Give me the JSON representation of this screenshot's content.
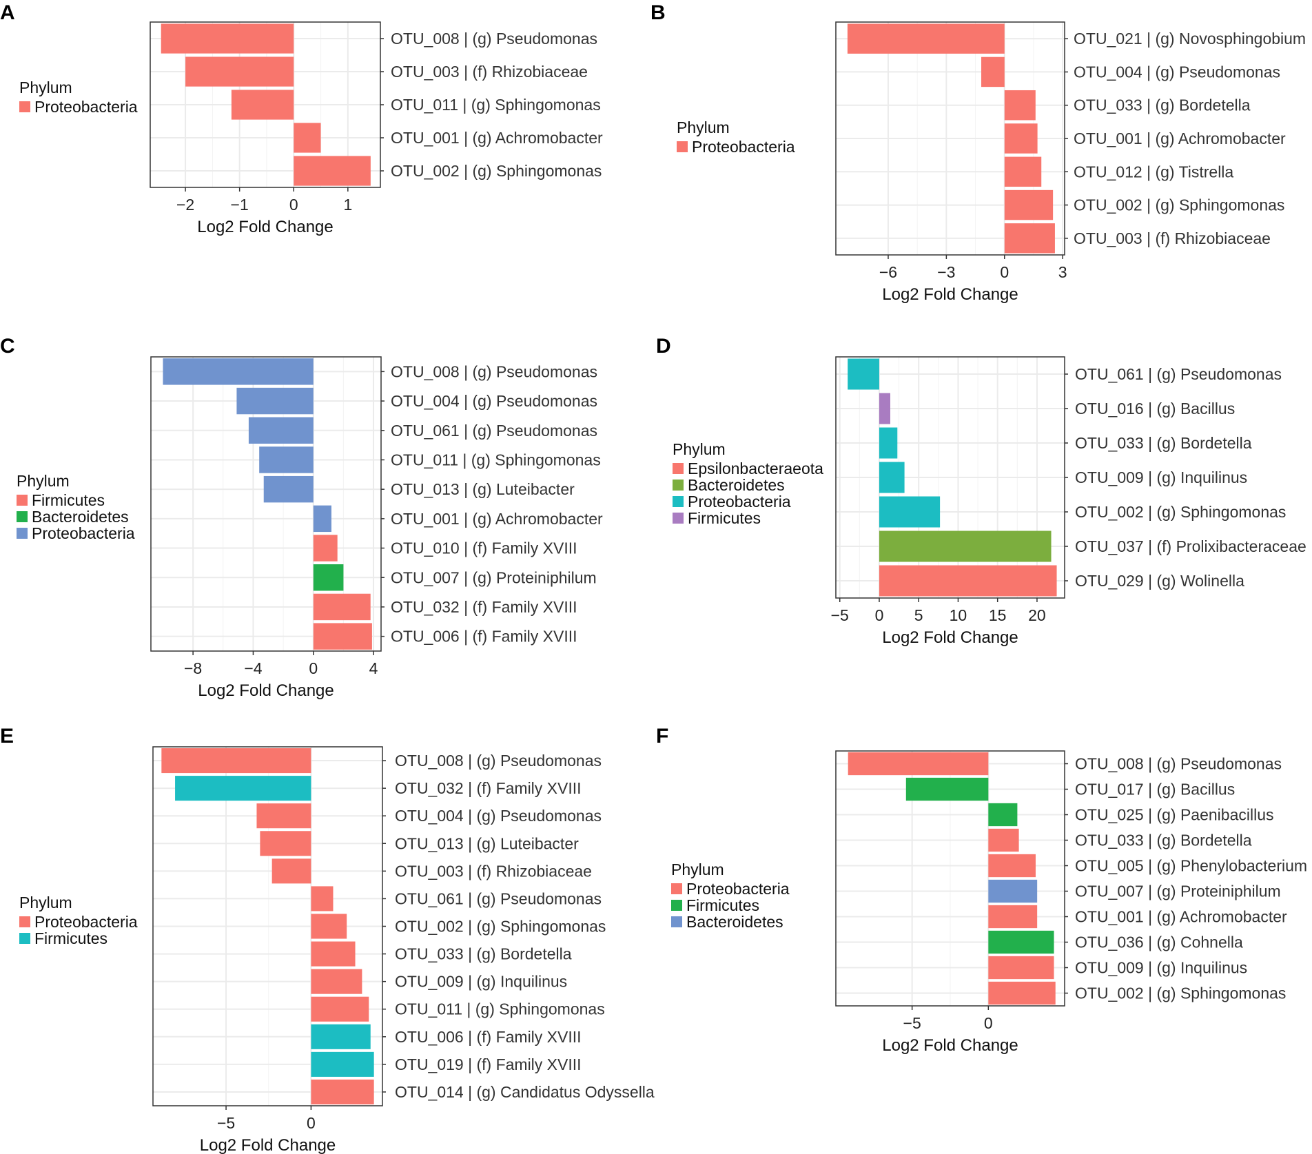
{
  "colors": {
    "red": "#F8766D",
    "blue": "#7093CE",
    "green": "#22B04C",
    "teal": "#1CBDC2",
    "olive": "#7CAE3E",
    "purple": "#A97CC1"
  },
  "chart_data": [
    {
      "panel": "A",
      "type": "bar",
      "orientation": "horizontal",
      "xlabel": "Log2 Fold Change",
      "xlim": [
        -2.65,
        1.6
      ],
      "xticks": [
        -2,
        -1,
        0,
        1
      ],
      "xtick_labels": [
        "−2",
        "−1",
        "0",
        "1"
      ],
      "legend": {
        "title": "Phylum",
        "entries": [
          {
            "name": "Proteobacteria",
            "color": "red"
          }
        ]
      },
      "categories": [
        "OTU_008 | (g) Pseudomonas",
        "OTU_003 | (f) Rhizobiaceae",
        "OTU_011 | (g) Sphingomonas",
        "OTU_001 | (g) Achromobacter",
        "OTU_002 | (g) Sphingomonas"
      ],
      "values": [
        -2.45,
        -2.0,
        -1.15,
        0.5,
        1.42
      ],
      "bar_colors": [
        "red",
        "red",
        "red",
        "red",
        "red"
      ]
    },
    {
      "panel": "B",
      "type": "bar",
      "orientation": "horizontal",
      "xlabel": "Log2 Fold Change",
      "xlim": [
        -8.7,
        3.1
      ],
      "xticks": [
        -6,
        -3,
        0,
        3
      ],
      "xtick_labels": [
        "−6",
        "−3",
        "0",
        "3"
      ],
      "legend": {
        "title": "Phylum",
        "entries": [
          {
            "name": "Proteobacteria",
            "color": "red"
          }
        ]
      },
      "categories": [
        "OTU_021 | (g) Novosphingobium",
        "OTU_004 | (g) Pseudomonas",
        "OTU_033 | (g) Bordetella",
        "OTU_001 | (g) Achromobacter",
        "OTU_012 | (g) Tistrella",
        "OTU_002 | (g) Sphingomonas",
        "OTU_003 | (f) Rhizobiaceae"
      ],
      "values": [
        -8.1,
        -1.2,
        1.6,
        1.7,
        1.9,
        2.5,
        2.6
      ],
      "bar_colors": [
        "red",
        "red",
        "red",
        "red",
        "red",
        "red",
        "red"
      ]
    },
    {
      "panel": "C",
      "type": "bar",
      "orientation": "horizontal",
      "xlabel": "Log2 Fold Change",
      "xlim": [
        -10.8,
        4.5
      ],
      "xticks": [
        -8,
        -4,
        0,
        4
      ],
      "xtick_labels": [
        "−8",
        "−4",
        "0",
        "4"
      ],
      "legend": {
        "title": "Phylum",
        "entries": [
          {
            "name": "Firmicutes",
            "color": "red"
          },
          {
            "name": "Bacteroidetes",
            "color": "green"
          },
          {
            "name": "Proteobacteria",
            "color": "blue"
          }
        ]
      },
      "categories": [
        "OTU_008 | (g) Pseudomonas",
        "OTU_004 | (g) Pseudomonas",
        "OTU_061 | (g) Pseudomonas",
        "OTU_011 | (g) Sphingomonas",
        "OTU_013 | (g) Luteibacter",
        "OTU_001 | (g) Achromobacter",
        "OTU_010 | (f) Family XVIII",
        "OTU_007 | (g) Proteiniphilum",
        "OTU_032 | (f) Family XVIII",
        "OTU_006 | (f) Family XVIII"
      ],
      "values": [
        -10.0,
        -5.1,
        -4.3,
        -3.6,
        -3.3,
        1.2,
        1.6,
        2.0,
        3.8,
        3.9
      ],
      "bar_colors": [
        "blue",
        "blue",
        "blue",
        "blue",
        "blue",
        "blue",
        "red",
        "green",
        "red",
        "red"
      ]
    },
    {
      "panel": "D",
      "type": "bar",
      "orientation": "horizontal",
      "xlabel": "Log2 Fold Change",
      "xlim": [
        -5.5,
        23.5
      ],
      "xticks": [
        -5,
        0,
        5,
        10,
        15,
        20
      ],
      "xtick_labels": [
        "−5",
        "0",
        "5",
        "10",
        "15",
        "20"
      ],
      "legend": {
        "title": "Phylum",
        "entries": [
          {
            "name": "Epsilonbacteraeota",
            "color": "red"
          },
          {
            "name": "Bacteroidetes",
            "color": "olive"
          },
          {
            "name": "Proteobacteria",
            "color": "teal"
          },
          {
            "name": "Firmicutes",
            "color": "purple"
          }
        ]
      },
      "categories": [
        "OTU_061 | (g) Pseudomonas",
        "OTU_016 | (g) Bacillus",
        "OTU_033 | (g) Bordetella",
        "OTU_009 | (g) Inquilinus",
        "OTU_002 | (g) Sphingomonas",
        "OTU_037 | (f) Prolixibacteraceae",
        "OTU_029 | (g) Wolinella"
      ],
      "values": [
        -4.0,
        1.4,
        2.3,
        3.2,
        7.7,
        21.8,
        22.5
      ],
      "bar_colors": [
        "teal",
        "purple",
        "teal",
        "teal",
        "teal",
        "olive",
        "red"
      ]
    },
    {
      "panel": "E",
      "type": "bar",
      "orientation": "horizontal",
      "xlabel": "Log2 Fold Change",
      "xlim": [
        -9.3,
        4.2
      ],
      "xticks": [
        -5,
        0
      ],
      "xtick_labels": [
        "−5",
        "0"
      ],
      "legend": {
        "title": "Phylum",
        "entries": [
          {
            "name": "Proteobacteria",
            "color": "red"
          },
          {
            "name": "Firmicutes",
            "color": "teal"
          }
        ]
      },
      "categories": [
        "OTU_008 | (g) Pseudomonas",
        "OTU_032 | (f) Family XVIII",
        "OTU_004 | (g) Pseudomonas",
        "OTU_013 | (g) Luteibacter",
        "OTU_003 | (f) Rhizobiaceae",
        "OTU_061 | (g) Pseudomonas",
        "OTU_002 | (g) Sphingomonas",
        "OTU_033 | (g) Bordetella",
        "OTU_009 | (g) Inquilinus",
        "OTU_011 | (g) Sphingomonas",
        "OTU_006 | (f) Family XVIII",
        "OTU_019 | (f) Family XVIII",
        "OTU_014 | (g) Candidatus Odyssella"
      ],
      "values": [
        -8.8,
        -8.0,
        -3.2,
        -3.0,
        -2.3,
        1.3,
        2.1,
        2.6,
        3.0,
        3.4,
        3.5,
        3.7,
        3.7
      ],
      "bar_colors": [
        "red",
        "teal",
        "red",
        "red",
        "red",
        "red",
        "red",
        "red",
        "red",
        "red",
        "teal",
        "teal",
        "red"
      ]
    },
    {
      "panel": "F",
      "type": "bar",
      "orientation": "horizontal",
      "xlabel": "Log2 Fold Change",
      "xlim": [
        -10.0,
        5.0
      ],
      "xticks": [
        -5,
        0
      ],
      "xtick_labels": [
        "−5",
        "0"
      ],
      "legend": {
        "title": "Phylum",
        "entries": [
          {
            "name": "Proteobacteria",
            "color": "red"
          },
          {
            "name": "Firmicutes",
            "color": "green"
          },
          {
            "name": "Bacteroidetes",
            "color": "blue"
          }
        ]
      },
      "categories": [
        "OTU_008 | (g) Pseudomonas",
        "OTU_017 | (g) Bacillus",
        "OTU_025 | (g) Paenibacillus",
        "OTU_033 | (g) Bordetella",
        "OTU_005 | (g) Phenylobacterium",
        "OTU_007 | (g) Proteiniphilum",
        "OTU_001 | (g) Achromobacter",
        "OTU_036 | (g) Cohnella",
        "OTU_009 | (g) Inquilinus",
        "OTU_002 | (g) Sphingomonas"
      ],
      "values": [
        -9.2,
        -5.4,
        1.9,
        2.0,
        3.1,
        3.2,
        3.2,
        4.3,
        4.3,
        4.4
      ],
      "bar_colors": [
        "red",
        "green",
        "green",
        "red",
        "red",
        "blue",
        "red",
        "green",
        "red",
        "red"
      ]
    }
  ]
}
